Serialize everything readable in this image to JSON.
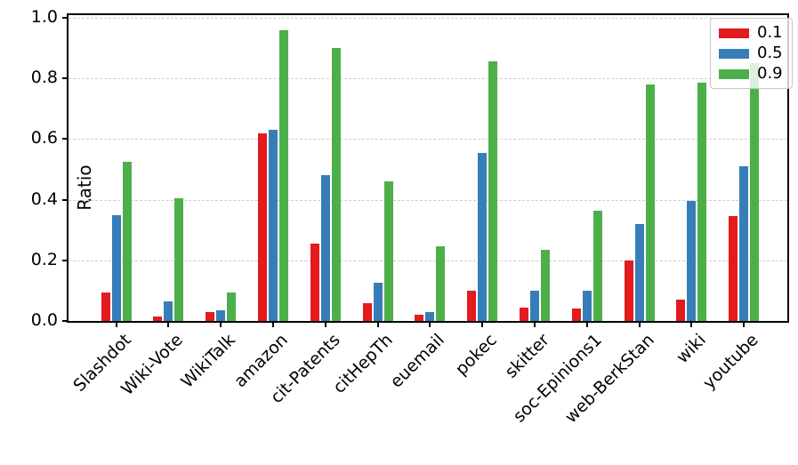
{
  "chart_data": {
    "type": "bar",
    "title": "",
    "xlabel": "",
    "ylabel": "Ratio",
    "ylim": [
      0.0,
      1.0
    ],
    "yticks": [
      "0.0",
      "0.2",
      "0.4",
      "0.6",
      "0.8",
      "1.0"
    ],
    "ytick_values": [
      0.0,
      0.2,
      0.4,
      0.6,
      0.8,
      1.0
    ],
    "grid": "horizontal-dashed",
    "legend_position": "upper right",
    "categories": [
      "Slashdot",
      "Wiki-Vote",
      "WikiTalk",
      "amazon",
      "cit-Patents",
      "citHepTh",
      "euemail",
      "pokec",
      "skitter",
      "soc-Epinions1",
      "web-BerkStan",
      "wiki",
      "youtube"
    ],
    "series": [
      {
        "name": "0.1",
        "color": "#e41a1c",
        "values": [
          0.095,
          0.015,
          0.03,
          0.62,
          0.255,
          0.06,
          0.02,
          0.1,
          0.045,
          0.04,
          0.2,
          0.07,
          0.345
        ]
      },
      {
        "name": "0.5",
        "color": "#377eb8",
        "values": [
          0.35,
          0.065,
          0.035,
          0.63,
          0.48,
          0.125,
          0.03,
          0.555,
          0.1,
          0.1,
          0.32,
          0.395,
          0.51
        ]
      },
      {
        "name": "0.9",
        "color": "#4daf4a",
        "values": [
          0.525,
          0.405,
          0.095,
          0.96,
          0.9,
          0.46,
          0.245,
          0.855,
          0.235,
          0.365,
          0.78,
          0.785,
          0.85
        ]
      }
    ]
  }
}
